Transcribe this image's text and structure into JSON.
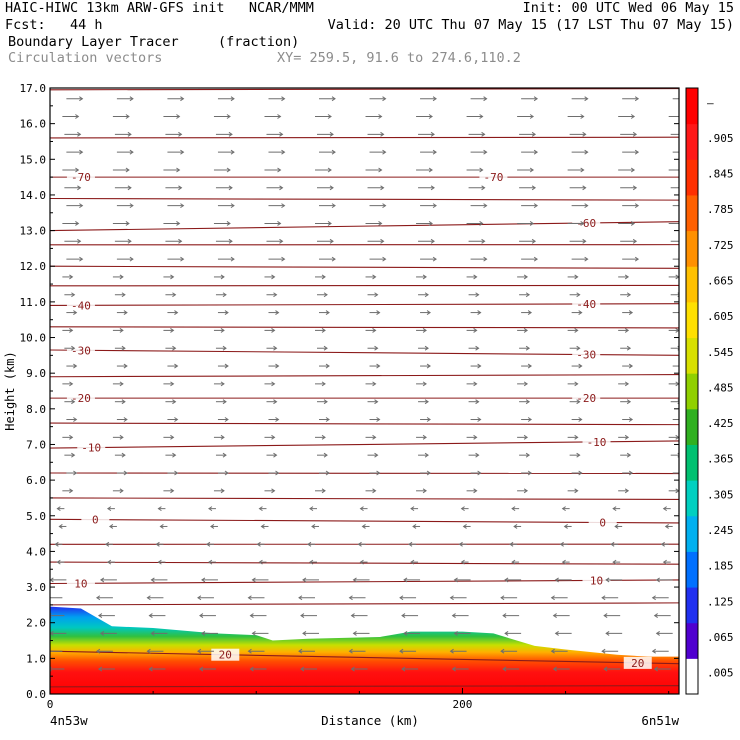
{
  "header": {
    "line1_left": "HAIC-HIWC 13km ARW-GFS init   NCAR/MMM",
    "line1_right": "Init: 00 UTC Wed 06 May 15",
    "line2_left": "Fcst:   44 h",
    "line2_right": "Valid: 20 UTC Thu 07 May 15 (17 LST Thu 07 May 15)",
    "field1_name": "Boundary Layer Tracer",
    "field1_units": "(fraction)",
    "field2_name": "Circulation vectors",
    "xy_label": "XY= 259.5, 91.6 to 274.6,110.2"
  },
  "colors": {
    "contour": "#8b1a1a",
    "vector": "#6e6e6e",
    "frame": "#000000"
  },
  "chart_data": {
    "type": "cross-section",
    "xlabel": "Distance (km)",
    "ylabel": "Height (km)",
    "xlim": [
      0,
      305
    ],
    "ylim": [
      0,
      17
    ],
    "x_ticks": [
      0,
      200
    ],
    "x_tick_labels": [
      "0",
      "200"
    ],
    "x_end_labels": [
      "4n53w",
      "6n51w"
    ],
    "y_ticks": [
      0,
      1,
      2,
      3,
      4,
      5,
      6,
      7,
      8,
      9,
      10,
      11,
      12,
      13,
      14,
      15,
      16,
      17
    ],
    "y_tick_labels": [
      "0.0",
      "1.0",
      "2.0",
      "3.0",
      "4.0",
      "5.0",
      "6.0",
      "7.0",
      "8.0",
      "9.0",
      "10.0",
      "11.0",
      "12.0",
      "13.0",
      "14.0",
      "15.0",
      "16.0",
      "17.0"
    ],
    "colorbar": {
      "labels": [
        ".005",
        ".065",
        ".125",
        ".185",
        ".245",
        ".305",
        ".365",
        ".425",
        ".485",
        ".545",
        ".605",
        ".665",
        ".725",
        ".785",
        ".845",
        ".905",
        "–"
      ],
      "colors": [
        "#ffffff",
        "#5000d0",
        "#2030f0",
        "#0070ff",
        "#00b0f0",
        "#00d0c0",
        "#00c070",
        "#30b020",
        "#90d000",
        "#d8e000",
        "#ffe000",
        "#ffc000",
        "#ff9000",
        "#ff6000",
        "#ff3000",
        "#ff1818",
        "#ff0000"
      ]
    },
    "temperature_contours_degC": [
      {
        "label": "-70",
        "heights_km": [
          14.5,
          14.5
        ],
        "label_x_km": [
          15,
          215
        ]
      },
      {
        "label": "-60",
        "heights_km": [
          13.0,
          13.25
        ],
        "label_x_km": [
          260
        ]
      },
      {
        "label": "-40",
        "heights_km": [
          10.9,
          10.95
        ],
        "label_x_km": [
          15,
          260
        ]
      },
      {
        "label": "-30",
        "heights_km": [
          9.65,
          9.5
        ],
        "label_x_km": [
          15,
          260
        ]
      },
      {
        "label": "-20",
        "heights_km": [
          8.3,
          8.3
        ],
        "label_x_km": [
          15,
          260
        ]
      },
      {
        "label": "-10",
        "heights_km": [
          6.9,
          7.1
        ],
        "label_x_km": [
          20,
          265
        ]
      },
      {
        "label": "0",
        "heights_km": [
          4.9,
          4.8
        ],
        "label_x_km": [
          22,
          268
        ]
      },
      {
        "label": "10",
        "heights_km": [
          3.1,
          3.2
        ],
        "label_x_km": [
          15,
          265
        ]
      },
      {
        "label": "20",
        "heights_km": [
          1.2,
          0.85
        ],
        "label_x_km": [
          85,
          285
        ]
      }
    ],
    "unlabeled_contour_heights_km": [
      16.95,
      15.6,
      13.9,
      12.6,
      12.0,
      11.45,
      10.3,
      8.9,
      7.6,
      6.2,
      5.5,
      4.2,
      3.7,
      2.5,
      0.2
    ],
    "tracer_top_height_km": {
      "x_km": [
        0,
        15,
        30,
        50,
        80,
        100,
        108,
        125,
        160,
        175,
        200,
        215,
        235,
        250,
        275,
        290,
        305
      ],
      "top_km": [
        2.45,
        2.4,
        1.9,
        1.85,
        1.7,
        1.65,
        1.5,
        1.55,
        1.6,
        1.75,
        1.75,
        1.7,
        1.35,
        1.25,
        1.1,
        1.05,
        1.05
      ]
    },
    "vector_field": {
      "upper_levels_direction": "east",
      "lower_levels_direction": "west",
      "reversal_height_km": 5.5
    }
  }
}
